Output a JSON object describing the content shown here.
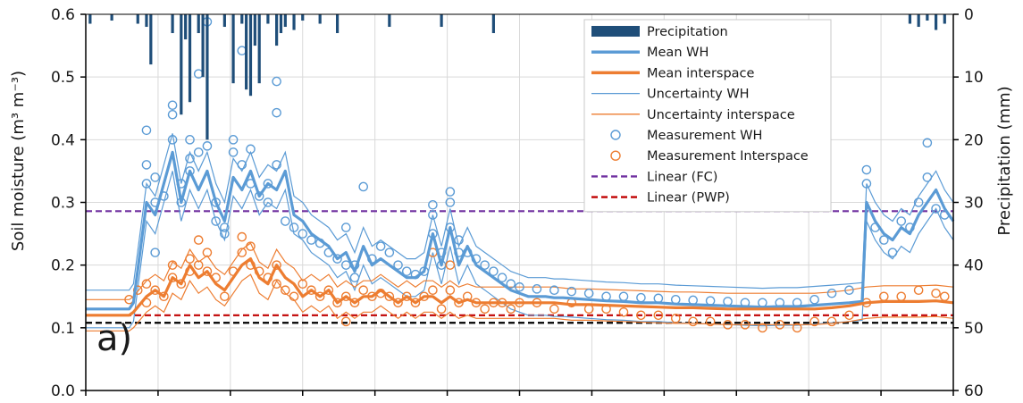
{
  "chart_data": {
    "type": "line",
    "panel_label": "a)",
    "ylabel_left": "Soil moisture (m³ m⁻³)",
    "ylabel_right": "Precipitation (mm)",
    "ylim_left": [
      0,
      0.6
    ],
    "ylim_right": [
      0,
      60
    ],
    "right_axis_inverted": true,
    "yticks_left": [
      "0.0",
      "0.1",
      "0.2",
      "0.3",
      "0.4",
      "0.5",
      "0.6"
    ],
    "yticks_right": [
      "0",
      "10",
      "20",
      "30",
      "40",
      "50",
      "60"
    ],
    "x_range": [
      0,
      100
    ],
    "x_tick_labels_shown": false,
    "grid": true,
    "legend_position": "top-right",
    "legend": [
      {
        "label": "Precipitation",
        "style": "bar",
        "color": "#1f4e79"
      },
      {
        "label": "Mean WH",
        "style": "thick-line",
        "color": "#5b9bd5"
      },
      {
        "label": "Mean interspace",
        "style": "thick-line",
        "color": "#ed7d31"
      },
      {
        "label": "Uncertainty WH",
        "style": "thin-line",
        "color": "#5b9bd5"
      },
      {
        "label": "Uncertainty interspace",
        "style": "thin-line",
        "color": "#ed7d31"
      },
      {
        "label": "Measurement WH",
        "style": "circle",
        "color": "#5b9bd5"
      },
      {
        "label": "Measurement Interspace",
        "style": "circle",
        "color": "#ed7d31"
      },
      {
        "label": "Linear (FC)",
        "style": "dashed",
        "color": "#7030a0"
      },
      {
        "label": "Linear (PWP)",
        "style": "dashed",
        "color": "#c00000"
      }
    ],
    "reference_lines": [
      {
        "name": "Linear (FC)",
        "y": 0.286,
        "color": "#7030a0"
      },
      {
        "name": "Linear (PWP)",
        "y": 0.12,
        "color": "#c00000"
      },
      {
        "name": "",
        "y": 0.108,
        "color": "#000000"
      }
    ],
    "series": [
      {
        "name": "Mean WH",
        "color": "#5b9bd5",
        "x": [
          0,
          5,
          5.5,
          7,
          8,
          9,
          10,
          11,
          12,
          13,
          14,
          15,
          16,
          17,
          18,
          19,
          20,
          21,
          22,
          23,
          24,
          25,
          26,
          27,
          28,
          29,
          30,
          31,
          32,
          33,
          34,
          35,
          36,
          37,
          38,
          39,
          40,
          41,
          42,
          43,
          44,
          45,
          46,
          47,
          48,
          49,
          50,
          51,
          52,
          53,
          54,
          55,
          56,
          58,
          60,
          62,
          64,
          66,
          68,
          70,
          72,
          74,
          76,
          78,
          80,
          82,
          84,
          86,
          88,
          89.5,
          90,
          91,
          92,
          93,
          94,
          95,
          96,
          97,
          98,
          99,
          100
        ],
        "values": [
          0.13,
          0.13,
          0.14,
          0.3,
          0.28,
          0.33,
          0.38,
          0.3,
          0.35,
          0.32,
          0.35,
          0.3,
          0.27,
          0.34,
          0.32,
          0.35,
          0.31,
          0.33,
          0.32,
          0.35,
          0.28,
          0.27,
          0.25,
          0.24,
          0.23,
          0.21,
          0.22,
          0.19,
          0.23,
          0.2,
          0.21,
          0.2,
          0.19,
          0.18,
          0.18,
          0.19,
          0.25,
          0.2,
          0.26,
          0.2,
          0.23,
          0.2,
          0.19,
          0.18,
          0.17,
          0.16,
          0.155,
          0.15,
          0.15,
          0.15,
          0.148,
          0.148,
          0.147,
          0.145,
          0.143,
          0.142,
          0.14,
          0.14,
          0.138,
          0.137,
          0.136,
          0.135,
          0.134,
          0.133,
          0.134,
          0.134,
          0.136,
          0.138,
          0.14,
          0.142,
          0.3,
          0.27,
          0.25,
          0.24,
          0.26,
          0.25,
          0.28,
          0.3,
          0.32,
          0.29,
          0.27
        ]
      },
      {
        "name": "Mean interspace",
        "color": "#ed7d31",
        "x": [
          0,
          5,
          5.5,
          7,
          8,
          9,
          10,
          11,
          12,
          13,
          14,
          15,
          16,
          17,
          18,
          19,
          20,
          21,
          22,
          23,
          24,
          25,
          26,
          27,
          28,
          29,
          30,
          31,
          32,
          33,
          34,
          35,
          36,
          37,
          38,
          39,
          40,
          41,
          42,
          43,
          44,
          45,
          46,
          47,
          48,
          49,
          50,
          52,
          54,
          56,
          58,
          60,
          62,
          64,
          66,
          68,
          70,
          72,
          74,
          76,
          78,
          80,
          82,
          84,
          86,
          88,
          90,
          92,
          94,
          96,
          98,
          100
        ],
        "values": [
          0.12,
          0.12,
          0.125,
          0.15,
          0.16,
          0.15,
          0.18,
          0.17,
          0.2,
          0.18,
          0.19,
          0.17,
          0.16,
          0.18,
          0.2,
          0.21,
          0.18,
          0.17,
          0.2,
          0.18,
          0.17,
          0.15,
          0.16,
          0.15,
          0.16,
          0.14,
          0.15,
          0.14,
          0.15,
          0.15,
          0.16,
          0.15,
          0.14,
          0.15,
          0.14,
          0.15,
          0.15,
          0.14,
          0.15,
          0.14,
          0.145,
          0.14,
          0.14,
          0.14,
          0.14,
          0.14,
          0.14,
          0.14,
          0.14,
          0.137,
          0.137,
          0.136,
          0.135,
          0.134,
          0.133,
          0.132,
          0.132,
          0.131,
          0.13,
          0.13,
          0.13,
          0.13,
          0.13,
          0.13,
          0.132,
          0.135,
          0.14,
          0.142,
          0.142,
          0.142,
          0.143,
          0.14
        ]
      },
      {
        "name": "Uncertainty WH",
        "color": "#5b9bd5",
        "offset": 0.03
      },
      {
        "name": "Uncertainty interspace",
        "color": "#ed7d31",
        "offset": 0.025
      },
      {
        "name": "Measurement WH",
        "color": "#5b9bd5",
        "points": [
          [
            7,
            0.415
          ],
          [
            7,
            0.36
          ],
          [
            7,
            0.33
          ],
          [
            8,
            0.34
          ],
          [
            8,
            0.3
          ],
          [
            8,
            0.22
          ],
          [
            9,
            0.31
          ],
          [
            10,
            0.455
          ],
          [
            10,
            0.44
          ],
          [
            10,
            0.4
          ],
          [
            11,
            0.3
          ],
          [
            11,
            0.33
          ],
          [
            12,
            0.35
          ],
          [
            12,
            0.37
          ],
          [
            12,
            0.4
          ],
          [
            13,
            0.505
          ],
          [
            13,
            0.38
          ],
          [
            14,
            0.588
          ],
          [
            14,
            0.39
          ],
          [
            15,
            0.3
          ],
          [
            15,
            0.27
          ],
          [
            16,
            0.26
          ],
          [
            16,
            0.25
          ],
          [
            17,
            0.4
          ],
          [
            17,
            0.38
          ],
          [
            18,
            0.542
          ],
          [
            18,
            0.36
          ],
          [
            19,
            0.385
          ],
          [
            19,
            0.33
          ],
          [
            20,
            0.31
          ],
          [
            21,
            0.33
          ],
          [
            21,
            0.3
          ],
          [
            22,
            0.493
          ],
          [
            22,
            0.443
          ],
          [
            22,
            0.36
          ],
          [
            23,
            0.27
          ],
          [
            24,
            0.26
          ],
          [
            25,
            0.25
          ],
          [
            26,
            0.24
          ],
          [
            27,
            0.235
          ],
          [
            28,
            0.22
          ],
          [
            29,
            0.21
          ],
          [
            30,
            0.26
          ],
          [
            30,
            0.2
          ],
          [
            31,
            0.2
          ],
          [
            31,
            0.18
          ],
          [
            32,
            0.325
          ],
          [
            33,
            0.21
          ],
          [
            34,
            0.23
          ],
          [
            35,
            0.22
          ],
          [
            36,
            0.2
          ],
          [
            37,
            0.19
          ],
          [
            38,
            0.185
          ],
          [
            39,
            0.19
          ],
          [
            40,
            0.296
          ],
          [
            40,
            0.28
          ],
          [
            40,
            0.25
          ],
          [
            41,
            0.22
          ],
          [
            41,
            0.2
          ],
          [
            42,
            0.317
          ],
          [
            42,
            0.3
          ],
          [
            42,
            0.26
          ],
          [
            43,
            0.24
          ],
          [
            43,
            0.22
          ],
          [
            44,
            0.22
          ],
          [
            45,
            0.21
          ],
          [
            46,
            0.2
          ],
          [
            47,
            0.19
          ],
          [
            48,
            0.18
          ],
          [
            49,
            0.17
          ],
          [
            50,
            0.165
          ],
          [
            52,
            0.162
          ],
          [
            54,
            0.16
          ],
          [
            56,
            0.158
          ],
          [
            58,
            0.155
          ],
          [
            60,
            0.15
          ],
          [
            62,
            0.15
          ],
          [
            64,
            0.148
          ],
          [
            66,
            0.147
          ],
          [
            68,
            0.145
          ],
          [
            70,
            0.144
          ],
          [
            72,
            0.143
          ],
          [
            74,
            0.142
          ],
          [
            76,
            0.14
          ],
          [
            78,
            0.14
          ],
          [
            80,
            0.14
          ],
          [
            82,
            0.14
          ],
          [
            84,
            0.145
          ],
          [
            86,
            0.155
          ],
          [
            88,
            0.16
          ],
          [
            90,
            0.352
          ],
          [
            90,
            0.33
          ],
          [
            91,
            0.26
          ],
          [
            92,
            0.24
          ],
          [
            93,
            0.22
          ],
          [
            94,
            0.27
          ],
          [
            95,
            0.26
          ],
          [
            96,
            0.3
          ],
          [
            97,
            0.395
          ],
          [
            97,
            0.34
          ],
          [
            98,
            0.29
          ],
          [
            99,
            0.28
          ]
        ]
      },
      {
        "name": "Measurement Interspace",
        "color": "#ed7d31",
        "points": [
          [
            5,
            0.145
          ],
          [
            6,
            0.16
          ],
          [
            7,
            0.17
          ],
          [
            7,
            0.14
          ],
          [
            8,
            0.16
          ],
          [
            9,
            0.15
          ],
          [
            10,
            0.2
          ],
          [
            10,
            0.18
          ],
          [
            11,
            0.17
          ],
          [
            12,
            0.21
          ],
          [
            12,
            0.19
          ],
          [
            13,
            0.24
          ],
          [
            13,
            0.2
          ],
          [
            14,
            0.22
          ],
          [
            14,
            0.19
          ],
          [
            15,
            0.18
          ],
          [
            16,
            0.15
          ],
          [
            17,
            0.19
          ],
          [
            18,
            0.245
          ],
          [
            18,
            0.22
          ],
          [
            19,
            0.23
          ],
          [
            19,
            0.2
          ],
          [
            20,
            0.19
          ],
          [
            21,
            0.18
          ],
          [
            22,
            0.2
          ],
          [
            22,
            0.17
          ],
          [
            23,
            0.16
          ],
          [
            24,
            0.15
          ],
          [
            25,
            0.17
          ],
          [
            26,
            0.16
          ],
          [
            27,
            0.15
          ],
          [
            28,
            0.16
          ],
          [
            29,
            0.14
          ],
          [
            30,
            0.15
          ],
          [
            30,
            0.11
          ],
          [
            31,
            0.14
          ],
          [
            32,
            0.16
          ],
          [
            33,
            0.15
          ],
          [
            34,
            0.155
          ],
          [
            35,
            0.15
          ],
          [
            36,
            0.14
          ],
          [
            37,
            0.15
          ],
          [
            38,
            0.14
          ],
          [
            39,
            0.15
          ],
          [
            40,
            0.22
          ],
          [
            40,
            0.16
          ],
          [
            41,
            0.13
          ],
          [
            42,
            0.2
          ],
          [
            42,
            0.16
          ],
          [
            43,
            0.14
          ],
          [
            44,
            0.15
          ],
          [
            45,
            0.14
          ],
          [
            46,
            0.13
          ],
          [
            47,
            0.14
          ],
          [
            48,
            0.14
          ],
          [
            49,
            0.13
          ],
          [
            50,
            0.14
          ],
          [
            52,
            0.14
          ],
          [
            54,
            0.13
          ],
          [
            56,
            0.14
          ],
          [
            58,
            0.13
          ],
          [
            60,
            0.13
          ],
          [
            62,
            0.125
          ],
          [
            64,
            0.12
          ],
          [
            66,
            0.12
          ],
          [
            68,
            0.115
          ],
          [
            70,
            0.11
          ],
          [
            72,
            0.11
          ],
          [
            74,
            0.105
          ],
          [
            76,
            0.105
          ],
          [
            78,
            0.1
          ],
          [
            80,
            0.105
          ],
          [
            82,
            0.1
          ],
          [
            84,
            0.11
          ],
          [
            86,
            0.11
          ],
          [
            88,
            0.12
          ],
          [
            90,
            0.14
          ],
          [
            92,
            0.15
          ],
          [
            94,
            0.15
          ],
          [
            96,
            0.16
          ],
          [
            98,
            0.155
          ],
          [
            99,
            0.15
          ]
        ]
      },
      {
        "name": "Precipitation",
        "color": "#1f4e79",
        "axis": "right",
        "x": [
          0.5,
          3,
          6,
          7,
          7.5,
          10,
          11,
          11.5,
          12,
          13,
          13.5,
          14,
          16,
          17,
          18,
          18.5,
          19,
          19.5,
          20,
          21,
          22,
          22.5,
          23,
          24,
          25,
          27,
          29,
          35,
          41,
          47,
          95,
          96,
          97,
          98,
          99
        ],
        "values": [
          1.5,
          1,
          1.5,
          2,
          8,
          3,
          16,
          4,
          14,
          3,
          10,
          20,
          2,
          11,
          1.5,
          12,
          13,
          5,
          11,
          1.5,
          5,
          3,
          2,
          2.5,
          1,
          1.5,
          3,
          2,
          2,
          3,
          1.5,
          2,
          1,
          2.5,
          1.5
        ]
      }
    ]
  }
}
